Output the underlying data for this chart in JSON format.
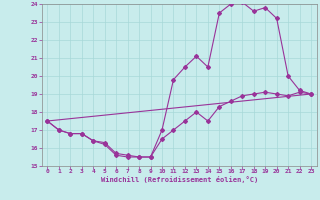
{
  "xlabel": "Windchill (Refroidissement éolien,°C)",
  "bg_color": "#c8ecec",
  "grid_color": "#a8d8d8",
  "line_color": "#993399",
  "xlim_min": -0.5,
  "xlim_max": 23.5,
  "ylim_min": 15,
  "ylim_max": 24,
  "yticks": [
    15,
    16,
    17,
    18,
    19,
    20,
    21,
    22,
    23,
    24
  ],
  "xticks": [
    0,
    1,
    2,
    3,
    4,
    5,
    6,
    7,
    8,
    9,
    10,
    11,
    12,
    13,
    14,
    15,
    16,
    17,
    18,
    19,
    20,
    21,
    22,
    23
  ],
  "curve1_x": [
    0,
    1,
    2,
    3,
    4,
    5,
    6,
    7,
    8,
    9,
    10,
    11,
    12,
    13,
    14,
    15,
    16,
    17,
    18,
    19,
    20,
    21,
    22,
    23
  ],
  "curve1_y": [
    17.5,
    17.0,
    16.8,
    16.8,
    16.4,
    16.2,
    15.6,
    15.5,
    15.5,
    15.5,
    17.0,
    19.8,
    20.5,
    21.1,
    20.5,
    23.5,
    24.0,
    24.1,
    23.6,
    23.8,
    23.2,
    20.0,
    19.2,
    19.0
  ],
  "curve2_x": [
    0,
    1,
    2,
    3,
    4,
    5,
    6,
    7,
    8,
    9,
    10,
    11,
    12,
    13,
    14,
    15,
    16,
    17,
    18,
    19,
    20,
    21,
    22,
    23
  ],
  "curve2_y": [
    17.5,
    17.0,
    16.8,
    16.8,
    16.4,
    16.3,
    15.7,
    15.6,
    15.5,
    15.5,
    16.5,
    17.0,
    17.5,
    18.0,
    17.5,
    18.3,
    18.6,
    18.9,
    19.0,
    19.1,
    19.0,
    18.9,
    19.1,
    19.0
  ],
  "line_x": [
    0,
    23
  ],
  "line_y": [
    17.5,
    19.0
  ]
}
